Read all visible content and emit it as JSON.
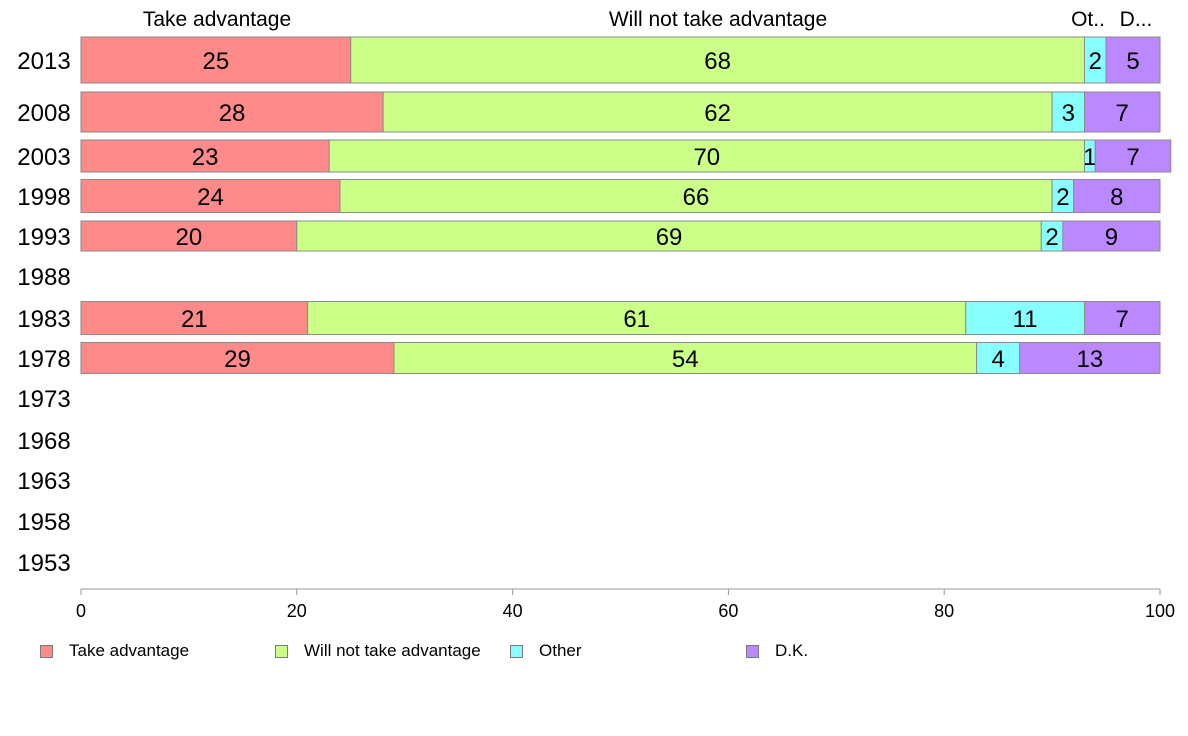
{
  "chart_data": {
    "type": "bar",
    "orientation": "horizontal",
    "stacked": true,
    "categories": [
      "2013",
      "2008",
      "2003",
      "1998",
      "1993",
      "1988",
      "1983",
      "1978",
      "1973",
      "1968",
      "1963",
      "1958",
      "1953"
    ],
    "series": [
      {
        "name": "Take advantage",
        "color": "#ff8a8a",
        "values": [
          25,
          28,
          23,
          24,
          20,
          null,
          21,
          29,
          null,
          null,
          null,
          null,
          null
        ]
      },
      {
        "name": "Will not take advantage",
        "color": "#ccff88",
        "values": [
          68,
          62,
          70,
          66,
          69,
          null,
          61,
          54,
          null,
          null,
          null,
          null,
          null
        ]
      },
      {
        "name": "Other",
        "color": "#88ffff",
        "values": [
          2,
          3,
          1,
          2,
          2,
          null,
          11,
          4,
          null,
          null,
          null,
          null,
          null
        ]
      },
      {
        "name": "D.K.",
        "color": "#bb88ff",
        "values": [
          5,
          7,
          7,
          8,
          9,
          null,
          7,
          13,
          null,
          null,
          null,
          null,
          null
        ]
      }
    ],
    "top_labels": [
      "Take advantage",
      "Will not take advantage",
      "Ot..",
      "D..."
    ],
    "xlim": [
      0,
      100
    ],
    "xticks": [
      0,
      20,
      40,
      60,
      80,
      100
    ],
    "legend_position": "bottom",
    "grid": false
  }
}
